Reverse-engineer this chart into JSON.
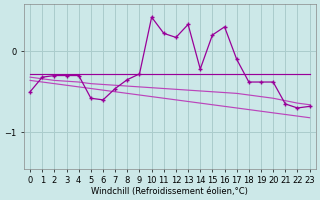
{
  "xlabel": "Windchill (Refroidissement éolien,°C)",
  "bg_color": "#cce8e8",
  "line_color": "#990099",
  "line_color2": "#bb44bb",
  "grid_color": "#aacccc",
  "x": [
    0,
    1,
    2,
    3,
    4,
    5,
    6,
    7,
    8,
    9,
    10,
    11,
    12,
    13,
    14,
    15,
    16,
    17,
    18,
    19,
    20,
    21,
    22,
    23
  ],
  "y_spiky": [
    -0.5,
    -0.32,
    -0.3,
    -0.3,
    -0.3,
    -0.58,
    -0.6,
    -0.46,
    -0.35,
    -0.28,
    0.42,
    0.22,
    0.17,
    0.33,
    -0.22,
    0.2,
    0.3,
    -0.1,
    -0.38,
    -0.38,
    -0.38,
    -0.65,
    -0.7,
    -0.68
  ],
  "y_flat": [
    -0.28,
    -0.28,
    -0.28,
    -0.28,
    -0.28,
    -0.28,
    -0.28,
    -0.28,
    -0.28,
    -0.28,
    -0.28,
    -0.28,
    -0.28,
    -0.28,
    -0.28,
    -0.28,
    -0.28,
    -0.28,
    -0.28,
    -0.28,
    -0.28,
    -0.28,
    -0.28,
    -0.28
  ],
  "y_decline1": [
    -0.32,
    -0.34,
    -0.36,
    -0.37,
    -0.38,
    -0.4,
    -0.41,
    -0.42,
    -0.43,
    -0.44,
    -0.45,
    -0.46,
    -0.47,
    -0.48,
    -0.49,
    -0.5,
    -0.51,
    -0.52,
    -0.54,
    -0.56,
    -0.58,
    -0.61,
    -0.64,
    -0.66
  ],
  "y_decline2": [
    -0.36,
    -0.38,
    -0.4,
    -0.42,
    -0.44,
    -0.46,
    -0.48,
    -0.5,
    -0.52,
    -0.54,
    -0.56,
    -0.58,
    -0.6,
    -0.62,
    -0.64,
    -0.66,
    -0.68,
    -0.7,
    -0.72,
    -0.74,
    -0.76,
    -0.78,
    -0.8,
    -0.82
  ],
  "ylim": [
    -1.45,
    0.58
  ],
  "yticks": [
    0,
    -1
  ],
  "xlim": [
    -0.5,
    23.5
  ],
  "marker": "+"
}
